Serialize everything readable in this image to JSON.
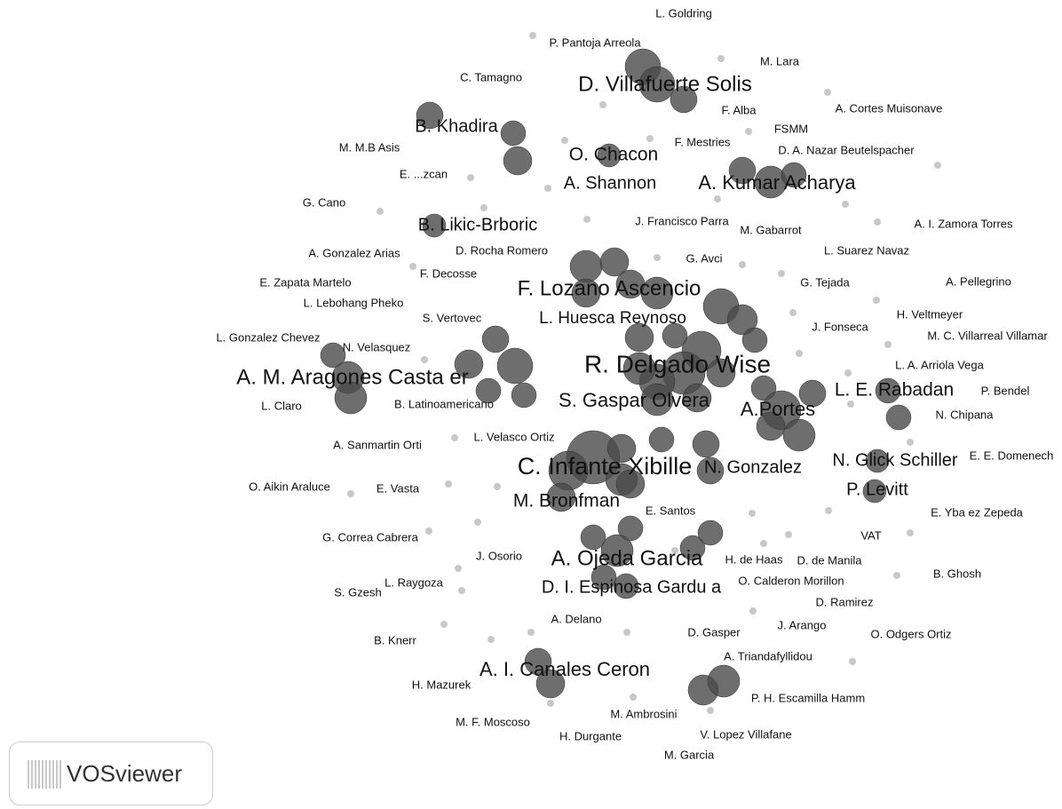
{
  "labels": [
    "L. Goldring",
    "P. Pantoja Arreola",
    "M. Lara",
    "C. Tamagno",
    "D. Villafuerte Solis",
    "F. Alba",
    "A. Cortes Muisonave",
    "B. Khadira",
    "FSMM",
    "M. M.B Asis",
    "F. Mestries",
    "D. A. Nazar Beutelspacher",
    "O. Chacon",
    "E. ...zcan",
    "A. Shannon",
    "A. Kumar Acharya",
    "G. Cano",
    "B. Likic-Brboric",
    "J. Francisco Parra",
    "M. Gabarrot",
    "A. I. Zamora Torres",
    "A. Gonzalez Arias",
    "D. Rocha Romero",
    "L. Suarez Navaz",
    "G. Avci",
    "F. Decosse",
    "E. Zapata Martelo",
    "F. Lozano Ascencio",
    "G. Tejada",
    "A. Pellegrino",
    "L. Lebohang Pheko",
    "S. Vertovec",
    "L. Huesca Reynoso",
    "H. Veltmeyer",
    "L. Gonzalez Chevez",
    "N. Velasquez",
    "J. Fonseca",
    "M. C. Villarreal Villamar",
    "R. Delgado Wise",
    "A. M. Aragones Casta er",
    "L. A. Arriola Vega",
    "L. E. Rabadan",
    "P. Bendel",
    "S. Gaspar Olvera",
    "L. Claro",
    "B. Latinoamericano",
    "A.Portes",
    "N. Chipana",
    "L. Velasco Ortiz",
    "A. Sanmartin Orti",
    "C. Infante Xibille",
    "N. Gonzalez",
    "N. Glick Schiller",
    "E. E. Domenech",
    "O. Aikin Araluce",
    "E. Vasta",
    "P. Levitt",
    "M. Bronfman",
    "E. Santos",
    "E. Yba ez Zepeda",
    "G. Correa Cabrera",
    "VAT",
    "J. Osorio",
    "A. Ojeda Garcia",
    "H. de Haas",
    "D. de Manila",
    "D. I. Espinosa Gardu a",
    "O. Calderon Morillon",
    "B. Ghosh",
    "L. Raygoza",
    "S. Gzesh",
    "D. Ramirez",
    "A. Delano",
    "J. Arango",
    "D. Gasper",
    "O. Odgers Ortiz",
    "B. Knerr",
    "A. Triandafyllidou",
    "A. I. Canales Ceron",
    "H. Mazurek",
    "P. H. Escamilla Hamm",
    "M. Ambrosini",
    "M. F. Moscoso",
    "H. Durgante",
    "V. Lopez Villafane",
    "M. Garcia"
  ],
  "logo": "VOSviewer"
}
